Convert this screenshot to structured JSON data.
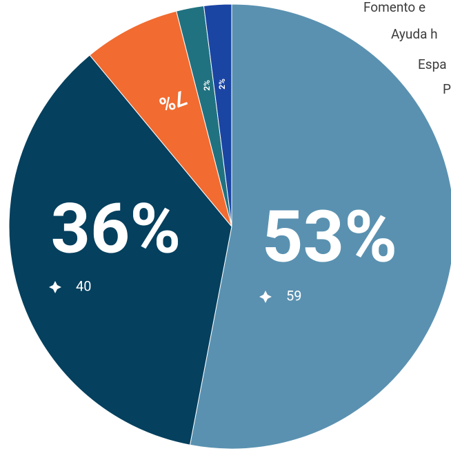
{
  "chart_data": {
    "type": "pie",
    "categories": [
      "Fomento e",
      "Ayuda h",
      "Espa",
      "P",
      null
    ],
    "values": [
      53,
      36,
      7,
      2,
      2
    ],
    "value_labels": [
      "53%",
      "36%",
      "7%",
      "2%",
      "2%"
    ],
    "counts": [
      59,
      40,
      null,
      null,
      null
    ],
    "colors": [
      "#5a91b0",
      "#05405e",
      "#f26b30",
      "#217280",
      "#1b45a3"
    ]
  }
}
